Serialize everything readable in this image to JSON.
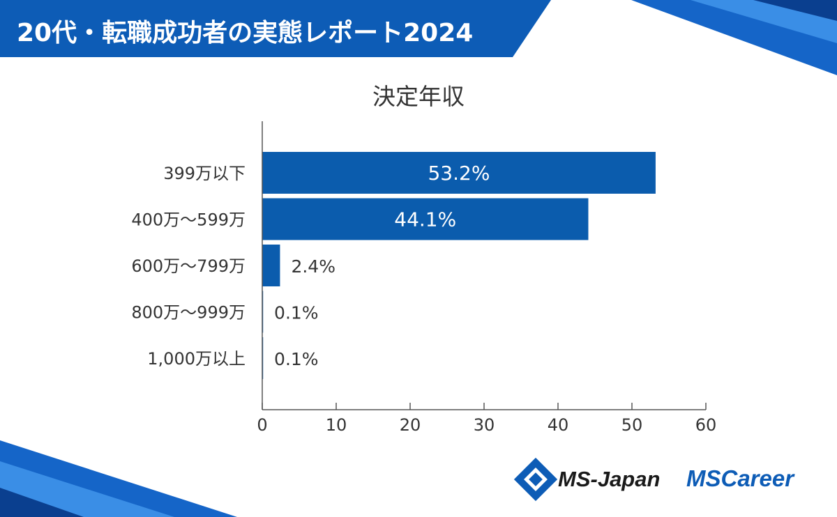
{
  "header": {
    "title": "20代・転職成功者の実態レポート2024"
  },
  "colors": {
    "bar": "#0b5cad",
    "banner": "#0d5cb6",
    "axis": "#555555",
    "text": "#333333",
    "label_inside": "#ffffff"
  },
  "chart_data": {
    "type": "bar",
    "orientation": "horizontal",
    "title": "決定年収",
    "categories": [
      "399万以下",
      "400万～599万",
      "600万～799万",
      "800万～999万",
      "1,000万以上"
    ],
    "values": [
      53.2,
      44.1,
      2.4,
      0.1,
      0.1
    ],
    "data_labels": [
      "53.2%",
      "44.1%",
      "2.4%",
      "0.1%",
      "0.1%"
    ],
    "xlim": [
      0,
      60
    ],
    "xticks": [
      0,
      10,
      20,
      30,
      40,
      50,
      60
    ],
    "xlabel": "",
    "ylabel": "",
    "grid": false
  },
  "logos": {
    "ms_japan": "MS-Japan",
    "ms_career": "MSCareer"
  }
}
